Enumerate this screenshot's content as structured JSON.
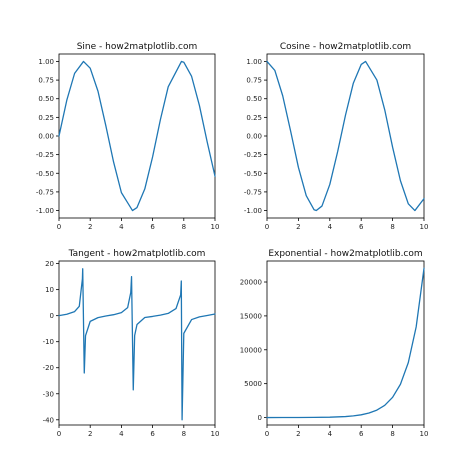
{
  "figure": {
    "line_color": "#1f77b4"
  },
  "chart_data": [
    {
      "type": "line",
      "title": "Sine - how2matplotlib.com",
      "xlabel": "",
      "ylabel": "",
      "xlim": [
        0,
        10
      ],
      "ylim": [
        -1.1,
        1.1
      ],
      "xticks": [
        0,
        2,
        4,
        6,
        8,
        10
      ],
      "yticks": [
        -1.0,
        -0.75,
        -0.5,
        -0.25,
        0.0,
        0.25,
        0.5,
        0.75,
        1.0
      ],
      "ytick_labels": [
        "-1.00",
        "-0.75",
        "-0.50",
        "-0.25",
        "0.00",
        "0.25",
        "0.50",
        "0.75",
        "1.00"
      ],
      "grid": false,
      "series": [
        {
          "x": [
            0,
            0.5,
            1,
            1.57,
            2,
            2.5,
            3,
            3.5,
            4,
            4.71,
            5,
            5.5,
            6,
            6.5,
            7,
            7.85,
            8,
            8.5,
            9,
            9.5,
            10
          ],
          "y": [
            0.0,
            0.48,
            0.84,
            1.0,
            0.91,
            0.6,
            0.14,
            -0.35,
            -0.76,
            -1.0,
            -0.96,
            -0.71,
            -0.28,
            0.22,
            0.66,
            1.0,
            0.99,
            0.8,
            0.41,
            -0.08,
            -0.54
          ]
        }
      ]
    },
    {
      "type": "line",
      "title": "Cosine - how2matplotlib.com",
      "xlabel": "",
      "ylabel": "",
      "xlim": [
        0,
        10
      ],
      "ylim": [
        -1.1,
        1.1
      ],
      "xticks": [
        0,
        2,
        4,
        6,
        8,
        10
      ],
      "yticks": [
        -1.0,
        -0.75,
        -0.5,
        -0.25,
        0.0,
        0.25,
        0.5,
        0.75,
        1.0
      ],
      "ytick_labels": [
        "-1.00",
        "-0.75",
        "-0.50",
        "-0.25",
        "0.00",
        "0.25",
        "0.50",
        "0.75",
        "1.00"
      ],
      "grid": false,
      "series": [
        {
          "x": [
            0,
            0.5,
            1,
            1.5,
            2,
            2.5,
            3,
            3.14,
            3.5,
            4,
            4.5,
            5,
            5.5,
            6,
            6.28,
            7,
            7.5,
            8,
            8.5,
            9,
            9.42,
            10
          ],
          "y": [
            1.0,
            0.88,
            0.54,
            0.07,
            -0.42,
            -0.8,
            -0.99,
            -1.0,
            -0.94,
            -0.65,
            -0.21,
            0.28,
            0.71,
            0.96,
            1.0,
            0.75,
            0.35,
            -0.15,
            -0.6,
            -0.91,
            -1.0,
            -0.84
          ]
        }
      ]
    },
    {
      "type": "line",
      "title": "Tangent - how2matplotlib.com",
      "xlabel": "",
      "ylabel": "",
      "xlim": [
        0,
        10
      ],
      "ylim": [
        -42,
        21
      ],
      "xticks": [
        0,
        2,
        4,
        6,
        8,
        10
      ],
      "yticks": [
        -40,
        -30,
        -20,
        -10,
        0,
        10,
        20
      ],
      "ytick_labels": [
        "-40",
        "-30",
        "-20",
        "-10",
        "0",
        "10",
        "20"
      ],
      "grid": false,
      "series": [
        {
          "x": [
            0,
            0.5,
            1,
            1.3,
            1.5,
            1.52,
            1.62,
            1.7,
            2,
            2.5,
            3,
            3.5,
            4,
            4.4,
            4.6,
            4.65,
            4.76,
            4.85,
            5,
            5.5,
            6,
            6.5,
            7,
            7.5,
            7.8,
            7.84,
            7.89,
            8,
            8.5,
            9,
            9.5,
            10
          ],
          "y": [
            0,
            0.55,
            1.56,
            3.6,
            14.1,
            18.0,
            -22.0,
            -7.7,
            -2.19,
            -0.75,
            -0.14,
            0.37,
            1.16,
            3.1,
            8.9,
            15.0,
            -28.5,
            -7.6,
            -3.38,
            -0.71,
            -0.29,
            0.22,
            0.87,
            2.71,
            8.0,
            13.3,
            -40.0,
            -6.8,
            -1.5,
            -0.45,
            0.07,
            0.65
          ]
        }
      ]
    },
    {
      "type": "line",
      "title": "Exponential - how2matplotlib.com",
      "xlabel": "",
      "ylabel": "",
      "xlim": [
        0,
        10
      ],
      "ylim": [
        -1100,
        23100
      ],
      "xticks": [
        0,
        2,
        4,
        6,
        8,
        10
      ],
      "yticks": [
        0,
        5000,
        10000,
        15000,
        20000
      ],
      "ytick_labels": [
        "0",
        "5000",
        "10000",
        "15000",
        "20000"
      ],
      "grid": false,
      "series": [
        {
          "x": [
            0,
            1,
            2,
            3,
            4,
            5,
            5.5,
            6,
            6.5,
            7,
            7.5,
            8,
            8.5,
            9,
            9.5,
            10
          ],
          "y": [
            1,
            2.7,
            7.4,
            20,
            55,
            148,
            245,
            403,
            665,
            1097,
            1808,
            2981,
            4915,
            8103,
            13360,
            22026
          ]
        }
      ]
    }
  ]
}
